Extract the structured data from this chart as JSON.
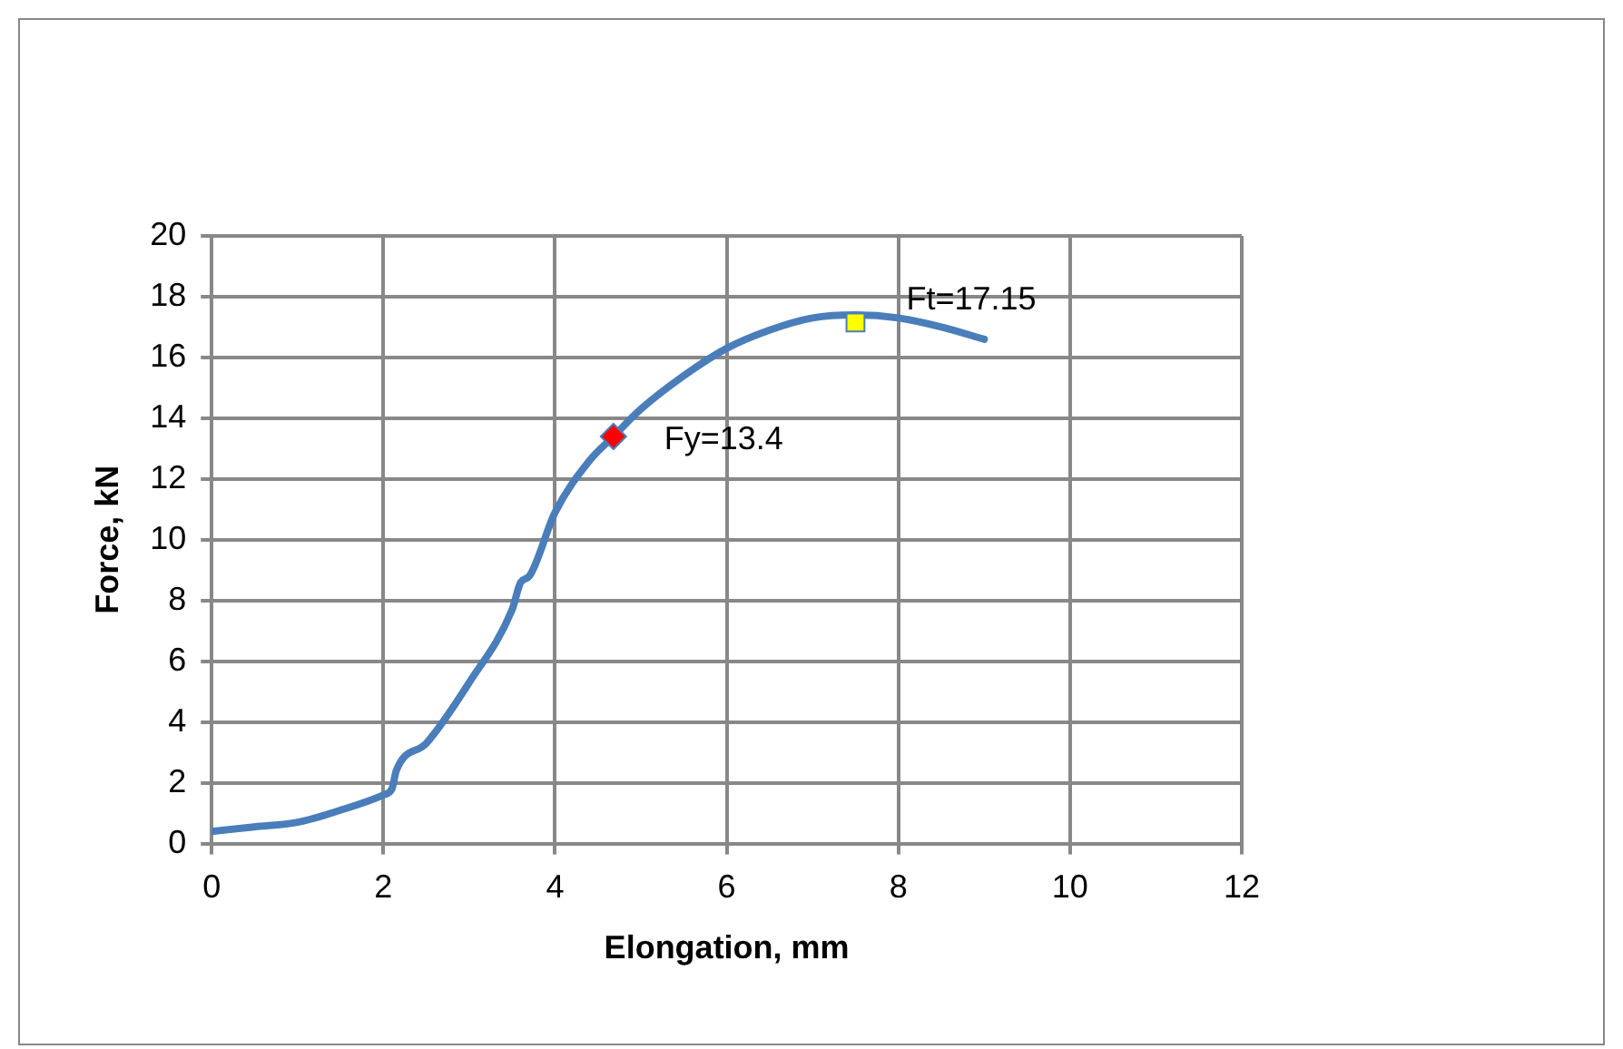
{
  "chart_data": {
    "type": "line",
    "xlabel": "Elongation, mm",
    "ylabel": "Force, kN",
    "xlim": [
      0,
      12
    ],
    "xticks": [
      0,
      2,
      4,
      6,
      8,
      10,
      12
    ],
    "ylim": [
      0,
      20
    ],
    "yticks": [
      0,
      2,
      4,
      6,
      8,
      10,
      12,
      14,
      16,
      18,
      20
    ],
    "grid": true,
    "legend": false,
    "series": [
      {
        "type": "line",
        "color": "#4a7ebb",
        "marker": "none",
        "line_style": "solid",
        "x": [
          0,
          0.5,
          1,
          1.5,
          2,
          2.1,
          2.15,
          2.5,
          3,
          3.5,
          3.6,
          3.7,
          4,
          4.4,
          4.68,
          5,
          5.5,
          6,
          6.5,
          7,
          7.5,
          8,
          8.5,
          9
        ],
        "values": [
          0.4,
          0.55,
          0.7,
          1.1,
          1.6,
          1.8,
          2.4,
          3.3,
          5.3,
          7.7,
          8.6,
          8.8,
          10.9,
          12.6,
          13.4,
          14.3,
          15.4,
          16.3,
          16.9,
          17.3,
          17.4,
          17.3,
          17.0,
          16.6
        ]
      },
      {
        "type": "scatter",
        "color": "#ff0000",
        "marker": "diamond",
        "x": [
          4.68
        ],
        "values": [
          13.4
        ]
      },
      {
        "type": "scatter",
        "color": "#ffff00",
        "marker": "square",
        "x": [
          7.5
        ],
        "values": [
          17.15
        ]
      }
    ],
    "annotations": [
      {
        "text": "Fy=13.4",
        "x": 4.68,
        "y": 13.4
      },
      {
        "text": "Ft=17.15",
        "x": 7.5,
        "y": 17.15
      }
    ]
  }
}
